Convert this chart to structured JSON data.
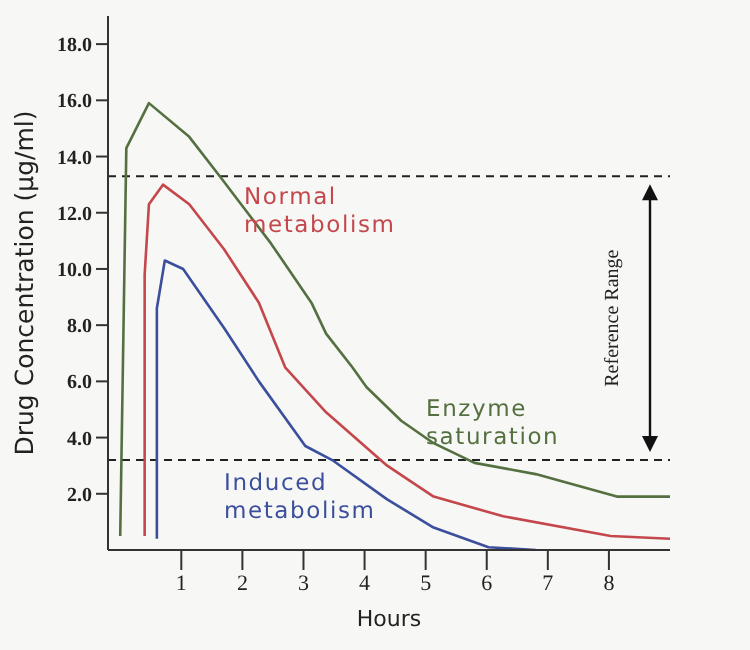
{
  "chart_data": {
    "type": "line",
    "xlabel": "Hours",
    "ylabel": "Drug Concentration (µg/ml)",
    "xlim": [
      -0.2,
      9.0
    ],
    "xticks": [
      1,
      2,
      3,
      4,
      5,
      6,
      7,
      8
    ],
    "ylim": [
      0,
      19
    ],
    "yticks": [
      {
        "value": 2,
        "label": "2.0"
      },
      {
        "value": 4,
        "label": "4.0"
      },
      {
        "value": 6,
        "label": "6.0"
      },
      {
        "value": 8,
        "label": "8.0"
      },
      {
        "value": 10,
        "label": "10.0"
      },
      {
        "value": 12,
        "label": "12.0"
      },
      {
        "value": 14,
        "label": "14.0"
      },
      {
        "value": 16,
        "label": "16.0"
      },
      {
        "value": 18,
        "label": "18.0"
      }
    ],
    "marker": "none",
    "line_style": "solid",
    "series": [
      {
        "name": "Enzyme saturation",
        "color": "#557040",
        "x": [
          0,
          0.1,
          0.47,
          1.13,
          1.63,
          2.47,
          3.13,
          3.37,
          3.8,
          4.03,
          4.6,
          5.13,
          5.8,
          6.8,
          8.13,
          9.0
        ],
        "values": [
          0.5,
          14.3,
          15.9,
          14.7,
          13.3,
          10.9,
          8.8,
          7.7,
          6.5,
          5.8,
          4.6,
          3.8,
          3.1,
          2.7,
          1.9,
          1.9
        ]
      },
      {
        "name": "Normal metabolism",
        "color": "#c4474c",
        "x": [
          0.4,
          0.4,
          0.47,
          0.7,
          1.13,
          1.7,
          2.27,
          2.7,
          3.37,
          4.37,
          5.13,
          6.27,
          8.03,
          9.0
        ],
        "values": [
          0.5,
          9.8,
          12.3,
          13.0,
          12.3,
          10.7,
          8.8,
          6.5,
          4.9,
          3.0,
          1.9,
          1.2,
          0.5,
          0.4
        ]
      },
      {
        "name": "Induced metabolism",
        "color": "#3b4f9c",
        "x": [
          0.6,
          0.6,
          0.73,
          1.03,
          1.7,
          2.27,
          3.03,
          3.47,
          4.37,
          5.13,
          6.03,
          6.8
        ],
        "values": [
          0.4,
          8.6,
          10.3,
          10.0,
          7.9,
          6.0,
          3.7,
          3.2,
          1.8,
          0.8,
          0.1,
          0
        ]
      }
    ],
    "ref_lines": [
      {
        "axis": "y",
        "value": 13.3,
        "color": "#222222",
        "line_style": "dashed"
      },
      {
        "axis": "y",
        "value": 3.2,
        "color": "#222222",
        "line_style": "dashed"
      }
    ],
    "annotations": [
      "Reference Range"
    ]
  }
}
